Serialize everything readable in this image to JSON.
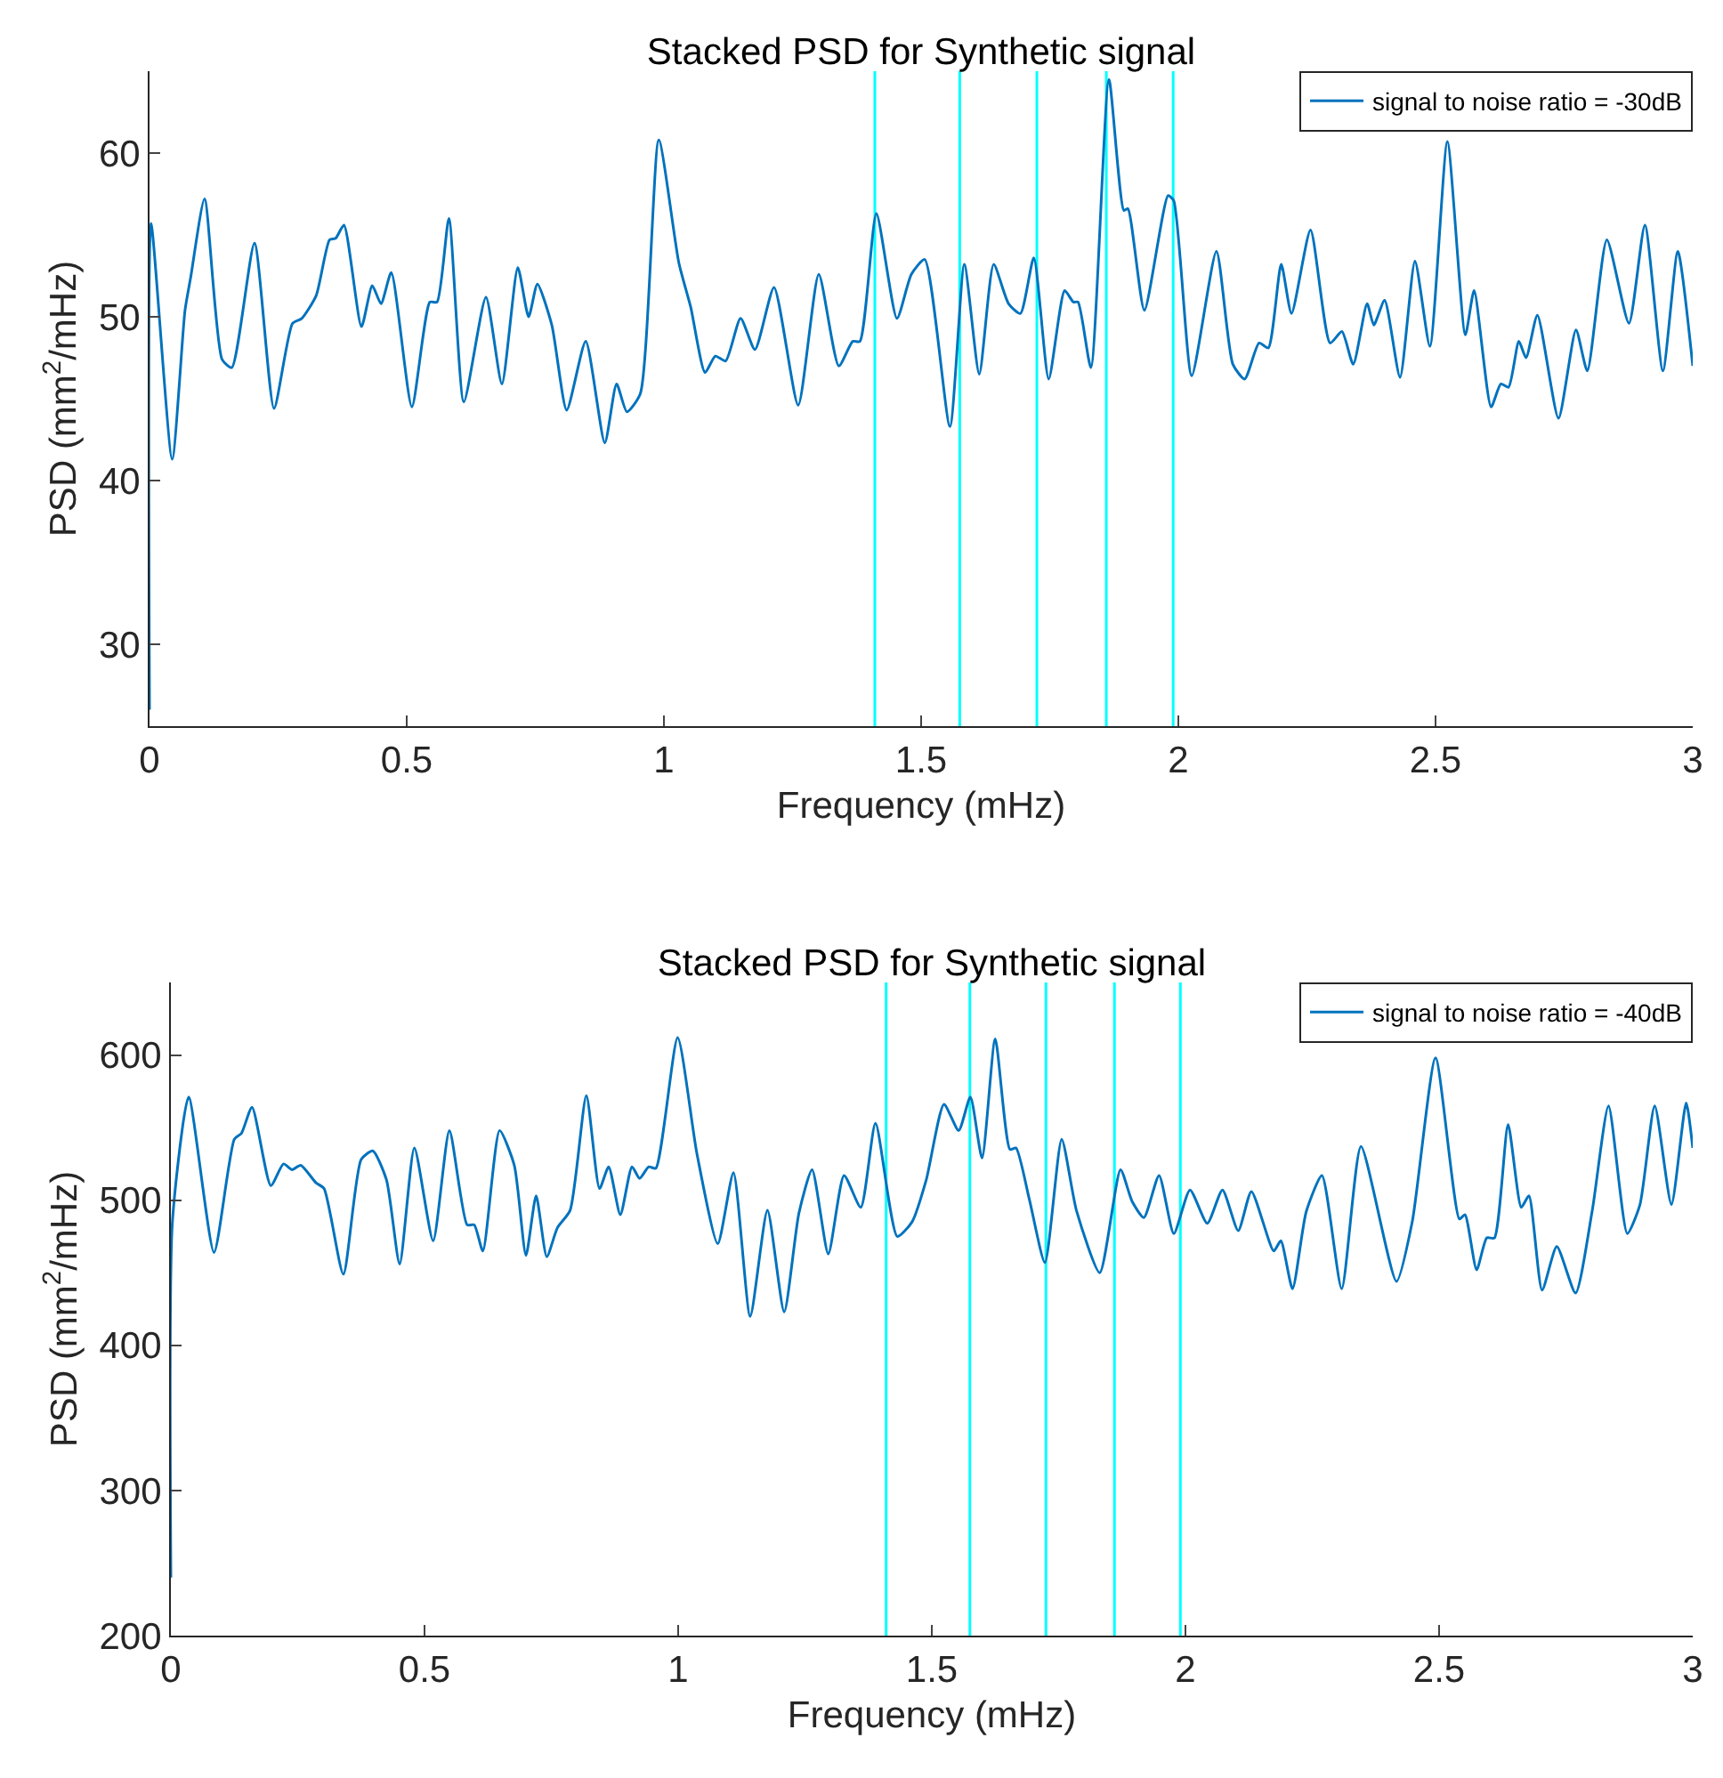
{
  "chart_data": [
    {
      "type": "line",
      "title": "Stacked PSD for Synthetic signal",
      "xlabel": "Frequency (mHz)",
      "ylabel": "PSD (mm$^{2}$/mHz)",
      "legend": "top right",
      "xlim": [
        0,
        3
      ],
      "ylim": [
        25,
        65
      ],
      "xticks": [
        0,
        0.5,
        1,
        1.5,
        2,
        2.5,
        3
      ],
      "yticks": [
        30,
        40,
        50,
        60
      ],
      "x": [
        0,
        0.003,
        0.044,
        0.069,
        0.08,
        0.107,
        0.141,
        0.16,
        0.204,
        0.242,
        0.278,
        0.296,
        0.324,
        0.35,
        0.362,
        0.378,
        0.412,
        0.433,
        0.45,
        0.47,
        0.51,
        0.545,
        0.559,
        0.582,
        0.611,
        0.654,
        0.685,
        0.716,
        0.737,
        0.754,
        0.782,
        0.811,
        0.848,
        0.885,
        0.908,
        0.928,
        0.954,
        0.99,
        1.029,
        1.052,
        1.08,
        1.1,
        1.12,
        1.149,
        1.177,
        1.214,
        1.261,
        1.301,
        1.34,
        1.367,
        1.381,
        1.413,
        1.453,
        1.481,
        1.507,
        1.556,
        1.584,
        1.613,
        1.641,
        1.67,
        1.693,
        1.719,
        1.748,
        1.779,
        1.796,
        1.805,
        1.83,
        1.865,
        1.894,
        1.902,
        1.934,
        1.98,
        1.991,
        2.026,
        2.074,
        2.106,
        2.129,
        2.157,
        2.175,
        2.2,
        2.22,
        2.257,
        2.295,
        2.318,
        2.34,
        2.367,
        2.38,
        2.401,
        2.431,
        2.46,
        2.489,
        2.523,
        2.558,
        2.575,
        2.608,
        2.627,
        2.642,
        2.662,
        2.676,
        2.698,
        2.739,
        2.773,
        2.795,
        2.833,
        2.876,
        2.907,
        2.942,
        2.971,
        3
      ],
      "series": [
        {
          "name": "signal to noise ratio = -30dB",
          "color": "#0072bd",
          "values": [
            26,
            55.7,
            41.3,
            50.4,
            52.4,
            57.2,
            47.4,
            46.9,
            54.5,
            44.4,
            49.6,
            49.9,
            51.3,
            54.7,
            54.8,
            55.6,
            49.4,
            51.9,
            50.8,
            52.7,
            44.5,
            50.9,
            50.9,
            56,
            44.8,
            51.2,
            45.9,
            53,
            50,
            52,
            49.5,
            44.3,
            48.5,
            42.3,
            45.9,
            44.2,
            45.3,
            60.8,
            53.3,
            50.6,
            46.6,
            47.6,
            47.3,
            49.9,
            48,
            51.8,
            44.6,
            52.6,
            47,
            48.5,
            48.5,
            56.3,
            49.9,
            52.6,
            53.5,
            43.3,
            53.2,
            46.5,
            53.2,
            50.8,
            50.2,
            53.6,
            46.2,
            51.6,
            50.9,
            50.9,
            46.9,
            64.5,
            56.5,
            56.6,
            50.4,
            57.4,
            57.1,
            46.4,
            54,
            47.1,
            46.2,
            48.4,
            48.1,
            53.2,
            50.2,
            55.3,
            48.4,
            49.1,
            47.1,
            50.8,
            49.5,
            51,
            46.3,
            53.4,
            48.2,
            60.7,
            48.9,
            51.6,
            44.5,
            45.9,
            45.7,
            48.5,
            47.5,
            50.1,
            43.8,
            49.2,
            46.7,
            54.7,
            49.6,
            55.6,
            46.7,
            54,
            47
          ]
        }
      ],
      "ref_lines": [
        {
          "axis": "x",
          "value": 1.41,
          "color": "#00ffff"
        },
        {
          "axis": "x",
          "value": 1.575,
          "color": "#00ffff"
        },
        {
          "axis": "x",
          "value": 1.725,
          "color": "#00ffff"
        },
        {
          "axis": "x",
          "value": 1.86,
          "color": "#00ffff"
        },
        {
          "axis": "x",
          "value": 1.99,
          "color": "#00ffff"
        }
      ]
    },
    {
      "type": "line",
      "title": "Stacked PSD for Synthetic signal",
      "xlabel": "Frequency (mHz)",
      "ylabel": "PSD (mm$^{2}$/mHz)",
      "legend": "top right",
      "xlim": [
        0,
        3
      ],
      "ylim": [
        200,
        650
      ],
      "xticks": [
        0,
        0.5,
        1,
        1.5,
        2,
        2.5,
        3
      ],
      "yticks": [
        200,
        300,
        400,
        500,
        600
      ],
      "x": [
        0,
        0.003,
        0.035,
        0.085,
        0.125,
        0.139,
        0.16,
        0.197,
        0.222,
        0.239,
        0.256,
        0.286,
        0.302,
        0.34,
        0.375,
        0.398,
        0.425,
        0.451,
        0.48,
        0.517,
        0.549,
        0.584,
        0.598,
        0.615,
        0.648,
        0.677,
        0.7,
        0.72,
        0.741,
        0.762,
        0.787,
        0.819,
        0.845,
        0.863,
        0.886,
        0.909,
        0.924,
        0.942,
        0.956,
        0.999,
        1.037,
        1.078,
        1.109,
        1.142,
        1.176,
        1.209,
        1.238,
        1.264,
        1.296,
        1.327,
        1.36,
        1.389,
        1.432,
        1.461,
        1.489,
        1.524,
        1.553,
        1.576,
        1.599,
        1.625,
        1.654,
        1.666,
        1.692,
        1.723,
        1.756,
        1.785,
        1.831,
        1.872,
        1.895,
        1.918,
        1.948,
        1.977,
        2.009,
        2.043,
        2.073,
        2.104,
        2.13,
        2.174,
        2.188,
        2.211,
        2.238,
        2.269,
        2.308,
        2.346,
        2.416,
        2.447,
        2.493,
        2.54,
        2.551,
        2.574,
        2.594,
        2.609,
        2.636,
        2.662,
        2.677,
        2.703,
        2.732,
        2.769,
        2.802,
        2.834,
        2.871,
        2.896,
        2.925,
        2.958,
        2.987,
        3
      ],
      "series": [
        {
          "name": "signal to noise ratio = -40dB",
          "color": "#0072bd",
          "values": [
            240,
            485,
            571,
            464,
            542,
            546,
            564,
            510,
            525,
            521,
            524,
            512,
            508,
            449,
            528,
            534,
            514,
            456,
            536,
            472,
            548,
            483,
            483,
            465,
            548,
            524,
            462,
            503,
            461,
            481,
            493,
            572,
            508,
            523,
            490,
            523,
            515,
            523,
            522,
            612,
            532,
            470,
            519,
            420,
            493,
            423,
            491,
            521,
            463,
            517,
            495,
            553,
            475,
            485,
            514,
            566,
            548,
            571,
            529,
            611,
            535,
            536,
            501,
            457,
            542,
            493,
            450,
            521,
            499,
            488,
            517,
            477,
            507,
            484,
            507,
            479,
            506,
            465,
            472,
            439,
            492,
            517,
            439,
            537,
            444,
            485,
            598,
            487,
            490,
            452,
            474,
            474,
            552,
            495,
            503,
            438,
            468,
            436,
            493,
            565,
            477,
            497,
            565,
            497,
            567,
            536
          ]
        }
      ],
      "ref_lines": [
        {
          "axis": "x",
          "value": 1.41,
          "color": "#00ffff"
        },
        {
          "axis": "x",
          "value": 1.575,
          "color": "#00ffff"
        },
        {
          "axis": "x",
          "value": 1.725,
          "color": "#00ffff"
        },
        {
          "axis": "x",
          "value": 1.86,
          "color": "#00ffff"
        },
        {
          "axis": "x",
          "value": 1.99,
          "color": "#00ffff"
        }
      ]
    }
  ]
}
